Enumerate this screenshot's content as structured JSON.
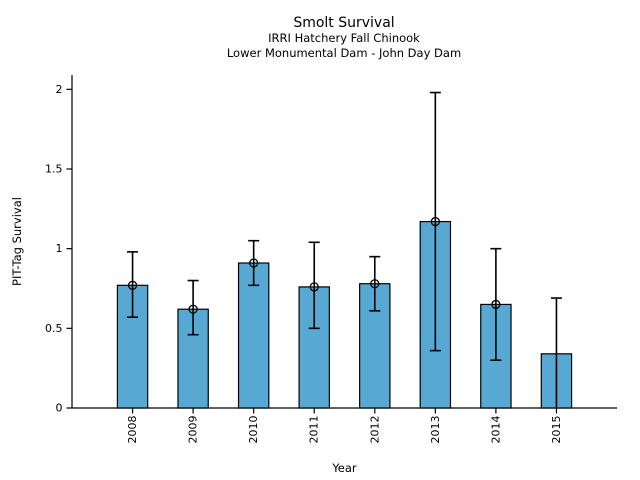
{
  "chart_data": {
    "type": "bar",
    "title": "Smolt Survival",
    "subtitle": [
      "IRRI Hatchery Fall Chinook",
      "Lower Monumental Dam - John Day Dam"
    ],
    "xlabel": "Year",
    "ylabel": "PIT-Tag Survival",
    "categories": [
      "2008",
      "2009",
      "2010",
      "2011",
      "2012",
      "2013",
      "2014",
      "2015"
    ],
    "values": [
      0.77,
      0.62,
      0.91,
      0.76,
      0.78,
      1.17,
      0.65,
      0.34
    ],
    "error_low": [
      0.57,
      0.46,
      0.77,
      0.5,
      0.61,
      0.36,
      0.3,
      0.0
    ],
    "error_high": [
      0.98,
      0.8,
      1.05,
      1.04,
      0.95,
      1.98,
      1.0,
      0.69
    ],
    "point_markers": [
      true,
      true,
      true,
      true,
      true,
      true,
      true,
      false
    ],
    "bar_color": "#57A9D4",
    "edge_color": "#000000",
    "error_color": "#000000",
    "background_color": "#ffffff",
    "xlim": [
      2007,
      2016
    ],
    "ylim": [
      0,
      2.09
    ],
    "yticks": [
      0,
      0.5,
      1,
      1.5,
      2
    ],
    "ytick_labels": [
      "0",
      "0.5",
      "1",
      "1.5",
      "2"
    ],
    "xtick_rotation": 90,
    "grid": false,
    "legend": false,
    "bar_width_years": 0.5
  }
}
